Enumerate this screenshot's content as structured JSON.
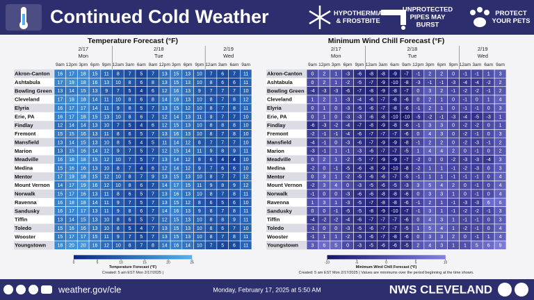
{
  "header": {
    "title": "Continued Cold Weather",
    "hazards": [
      [
        "HYPOTHERMIA",
        "& FROSTBITE"
      ],
      [
        "UNPROTECTED",
        "PIPES MAY",
        "BURST"
      ],
      [
        "PROTECT",
        "YOUR PETS"
      ]
    ]
  },
  "chart_data": [
    {
      "type": "heatmap",
      "title": "Temperature Forecast (°F)",
      "days": [
        {
          "date": "2/17",
          "day": "Mon",
          "times": [
            "9am",
            "12pm",
            "3pm",
            "6pm",
            "9pm"
          ]
        },
        {
          "date": "2/18",
          "day": "Tue",
          "times": [
            "12am",
            "3am",
            "6am",
            "9am",
            "12pm",
            "3pm",
            "6pm",
            "9pm"
          ]
        },
        {
          "date": "2/19",
          "day": "Wed",
          "times": [
            "12am",
            "3am",
            "6am",
            "9am"
          ]
        }
      ],
      "rows": [
        {
          "name": "Akron-Canton",
          "values": [
            16,
            17,
            18,
            15,
            11,
            8,
            7,
            5,
            7,
            13,
            15,
            13,
            10,
            7,
            6,
            7,
            11
          ]
        },
        {
          "name": "Ashtabula",
          "values": [
            17,
            19,
            18,
            16,
            13,
            10,
            8,
            6,
            8,
            13,
            15,
            13,
            10,
            8,
            6,
            6,
            11
          ]
        },
        {
          "name": "Bowling Green",
          "values": [
            13,
            14,
            15,
            13,
            9,
            7,
            5,
            4,
            6,
            12,
            16,
            13,
            9,
            7,
            7,
            7,
            10
          ]
        },
        {
          "name": "Cleveland",
          "values": [
            17,
            18,
            18,
            14,
            11,
            10,
            8,
            6,
            8,
            14,
            16,
            13,
            10,
            8,
            7,
            8,
            12
          ]
        },
        {
          "name": "Elyria",
          "values": [
            16,
            17,
            17,
            14,
            11,
            9,
            8,
            5,
            7,
            13,
            15,
            12,
            10,
            8,
            7,
            8,
            11
          ]
        },
        {
          "name": "Erie, PA",
          "values": [
            16,
            17,
            18,
            15,
            13,
            10,
            8,
            6,
            7,
            12,
            14,
            13,
            11,
            9,
            7,
            7,
            10
          ]
        },
        {
          "name": "Findlay",
          "values": [
            12,
            14,
            14,
            13,
            10,
            7,
            5,
            4,
            6,
            12,
            15,
            13,
            10,
            8,
            8,
            8,
            10
          ]
        },
        {
          "name": "Fremont",
          "values": [
            15,
            15,
            16,
            13,
            11,
            8,
            6,
            5,
            7,
            13,
            16,
            13,
            10,
            8,
            7,
            8,
            10
          ]
        },
        {
          "name": "Mansfield",
          "values": [
            13,
            14,
            15,
            13,
            10,
            8,
            5,
            4,
            5,
            11,
            14,
            12,
            8,
            7,
            7,
            7,
            10
          ]
        },
        {
          "name": "Marion",
          "values": [
            13,
            15,
            16,
            14,
            12,
            9,
            7,
            5,
            7,
            12,
            15,
            14,
            11,
            9,
            8,
            9,
            11
          ]
        },
        {
          "name": "Meadville",
          "values": [
            16,
            18,
            18,
            15,
            12,
            10,
            7,
            5,
            7,
            13,
            14,
            12,
            8,
            6,
            4,
            4,
            10
          ]
        },
        {
          "name": "Medina",
          "values": [
            15,
            16,
            16,
            13,
            10,
            8,
            7,
            4,
            6,
            12,
            14,
            12,
            9,
            7,
            6,
            6,
            10
          ]
        },
        {
          "name": "Mentor",
          "values": [
            17,
            19,
            18,
            15,
            12,
            10,
            8,
            7,
            9,
            13,
            15,
            13,
            10,
            8,
            7,
            7,
            12
          ]
        },
        {
          "name": "Mount Vernon",
          "values": [
            14,
            17,
            19,
            16,
            12,
            10,
            8,
            6,
            7,
            14,
            17,
            15,
            11,
            9,
            8,
            9,
            12
          ]
        },
        {
          "name": "Norwalk",
          "values": [
            15,
            17,
            16,
            13,
            11,
            8,
            6,
            5,
            7,
            13,
            16,
            13,
            10,
            8,
            7,
            8,
            11
          ]
        },
        {
          "name": "Ravenna",
          "values": [
            16,
            18,
            18,
            14,
            11,
            9,
            7,
            5,
            7,
            13,
            15,
            12,
            8,
            6,
            5,
            6,
            10
          ]
        },
        {
          "name": "Sandusky",
          "values": [
            16,
            17,
            17,
            13,
            11,
            9,
            8,
            6,
            7,
            14,
            16,
            13,
            9,
            8,
            7,
            8,
            11
          ]
        },
        {
          "name": "Tiffin",
          "values": [
            13,
            14,
            15,
            13,
            10,
            8,
            6,
            5,
            7,
            12,
            15,
            13,
            10,
            8,
            8,
            9,
            11
          ]
        },
        {
          "name": "Toledo",
          "values": [
            15,
            16,
            16,
            13,
            10,
            8,
            5,
            4,
            7,
            13,
            15,
            13,
            10,
            8,
            6,
            7,
            10
          ]
        },
        {
          "name": "Wooster",
          "values": [
            15,
            17,
            17,
            15,
            11,
            9,
            7,
            5,
            7,
            13,
            15,
            13,
            10,
            8,
            7,
            8,
            11
          ]
        },
        {
          "name": "Youngstown",
          "values": [
            18,
            20,
            20,
            16,
            12,
            10,
            8,
            7,
            8,
            14,
            16,
            14,
            10,
            7,
            5,
            6,
            11
          ]
        }
      ],
      "colors": [
        "#0b2a86",
        "#4fb0f2"
      ],
      "clim": [
        0,
        25
      ],
      "cticks": [
        0,
        5,
        10,
        15,
        20,
        25
      ],
      "colorbar_label": "Temperature Forecast (°F)",
      "note": "Created: 5 am EST Mon 2/17/2025 |"
    },
    {
      "type": "heatmap",
      "title": "Minimum Wind Chill Forecast (°F)",
      "days": [
        {
          "date": "2/17",
          "day": "Mon",
          "times": [
            "9am",
            "12pm",
            "3pm",
            "6pm",
            "9pm"
          ]
        },
        {
          "date": "2/18",
          "day": "Tue",
          "times": [
            "12am",
            "3am",
            "6am",
            "9am",
            "12pm",
            "3pm",
            "6pm",
            "9pm"
          ]
        },
        {
          "date": "2/19",
          "day": "Wed",
          "times": [
            "12am",
            "3am",
            "6am",
            "9am"
          ]
        }
      ],
      "rows": [
        {
          "name": "Akron-Canton",
          "values": [
            0,
            2,
            1,
            -3,
            -6,
            -8,
            -8,
            -9,
            -7,
            -1,
            2,
            2,
            0,
            -1,
            -1,
            1,
            3
          ]
        },
        {
          "name": "Ashtabula",
          "values": [
            0,
            2,
            1,
            -2,
            -5,
            -7,
            -9,
            -10,
            -8,
            -3,
            -1,
            -1,
            -3,
            -4,
            -4,
            -2,
            2
          ]
        },
        {
          "name": "Bowling Green",
          "values": [
            -4,
            -3,
            -3,
            -6,
            -7,
            -8,
            -9,
            -8,
            -7,
            0,
            3,
            2,
            -1,
            -2,
            -2,
            -1,
            2
          ]
        },
        {
          "name": "Cleveland",
          "values": [
            1,
            2,
            1,
            -3,
            -4,
            -6,
            -7,
            -8,
            -6,
            0,
            2,
            1,
            0,
            -1,
            0,
            1,
            4
          ]
        },
        {
          "name": "Elyria",
          "values": [
            0,
            1,
            0,
            -3,
            -5,
            -6,
            -7,
            -8,
            -6,
            -1,
            2,
            1,
            0,
            -1,
            -1,
            0,
            3
          ]
        },
        {
          "name": "Erie, PA",
          "values": [
            0,
            1,
            0,
            -3,
            -3,
            -6,
            -8,
            -10,
            -10,
            -5,
            -2,
            -1,
            -3,
            -4,
            -5,
            -3,
            1
          ]
        },
        {
          "name": "Findlay",
          "values": [
            -6,
            -3,
            -2,
            -4,
            -7,
            -8,
            -9,
            -8,
            -6,
            -1,
            3,
            3,
            0,
            -2,
            -2,
            0,
            1
          ]
        },
        {
          "name": "Fremont",
          "values": [
            -2,
            -1,
            -1,
            -4,
            -6,
            -7,
            -7,
            -7,
            -6,
            0,
            4,
            3,
            0,
            -2,
            -1,
            0,
            3
          ]
        },
        {
          "name": "Mansfield",
          "values": [
            -4,
            -1,
            0,
            -3,
            -6,
            -7,
            -9,
            -9,
            -8,
            -1,
            2,
            2,
            0,
            -2,
            -3,
            -1,
            2
          ]
        },
        {
          "name": "Marion",
          "values": [
            -3,
            -1,
            1,
            -1,
            -3,
            -6,
            -7,
            -7,
            -5,
            1,
            4,
            4,
            2,
            0,
            -1,
            0,
            2
          ]
        },
        {
          "name": "Meadville",
          "values": [
            0,
            2,
            1,
            -2,
            -5,
            -7,
            -9,
            -9,
            -7,
            -2,
            0,
            0,
            -2,
            -3,
            -3,
            -4,
            3
          ]
        },
        {
          "name": "Medina",
          "values": [
            -2,
            0,
            -1,
            -5,
            -6,
            -8,
            -9,
            -10,
            -8,
            -2,
            1,
            1,
            -1,
            -2,
            -3,
            0,
            3
          ]
        },
        {
          "name": "Mentor",
          "values": [
            0,
            3,
            1,
            -2,
            -5,
            -6,
            -6,
            -7,
            -5,
            -1,
            1,
            1,
            -1,
            -1,
            -1,
            0,
            4
          ]
        },
        {
          "name": "Mount Vernon",
          "values": [
            -2,
            3,
            4,
            0,
            -3,
            -5,
            -6,
            -5,
            -3,
            3,
            5,
            4,
            2,
            0,
            -1,
            0,
            4
          ]
        },
        {
          "name": "Norwalk",
          "values": [
            -1,
            0,
            0,
            -3,
            -6,
            -6,
            -8,
            -8,
            -6,
            0,
            3,
            3,
            1,
            0,
            -1,
            0,
            4
          ]
        },
        {
          "name": "Ravenna",
          "values": [
            1,
            3,
            1,
            -3,
            -5,
            -7,
            -8,
            -8,
            -6,
            -1,
            2,
            1,
            -1,
            -3,
            -3,
            6,
            6
          ]
        },
        {
          "name": "Sandusky",
          "values": [
            0,
            0,
            -1,
            -5,
            -5,
            -8,
            -9,
            -10,
            -7,
            -1,
            3,
            1,
            -1,
            -2,
            -2,
            -1,
            3
          ]
        },
        {
          "name": "Tiffin",
          "values": [
            -4,
            -2,
            -2,
            -4,
            -6,
            -7,
            -7,
            -7,
            -6,
            0,
            4,
            3,
            1,
            -1,
            -1,
            0,
            3
          ]
        },
        {
          "name": "Toledo",
          "values": [
            -1,
            0,
            0,
            -3,
            -5,
            -6,
            -7,
            -7,
            -5,
            1,
            5,
            4,
            1,
            -2,
            -1,
            0,
            4
          ]
        },
        {
          "name": "Wooster",
          "values": [
            -1,
            1,
            1,
            -2,
            -5,
            -6,
            -7,
            -8,
            -6,
            0,
            3,
            3,
            2,
            0,
            -1,
            1,
            4
          ]
        },
        {
          "name": "Youngstown",
          "values": [
            3,
            6,
            5,
            0,
            -3,
            -5,
            -6,
            -6,
            -5,
            2,
            4,
            3,
            1,
            1,
            5,
            6,
            9
          ]
        }
      ],
      "colors": [
        "#17176a",
        "#8080e4"
      ],
      "clim": [
        -10,
        10
      ],
      "cticks": [
        -10,
        -5,
        0,
        5,
        10
      ],
      "colorbar_label": "Minimum Wind Chill Forecast (°F)",
      "note": "Created: 5 am EST Mon 2/17/2025 |  Values are minimums over the period beginning at the time shown."
    }
  ],
  "footer": {
    "url": "weather.gov/cle",
    "issued": "Monday, February 17, 2025 at 5:50 AM",
    "office": "NWS CLEVELAND"
  }
}
